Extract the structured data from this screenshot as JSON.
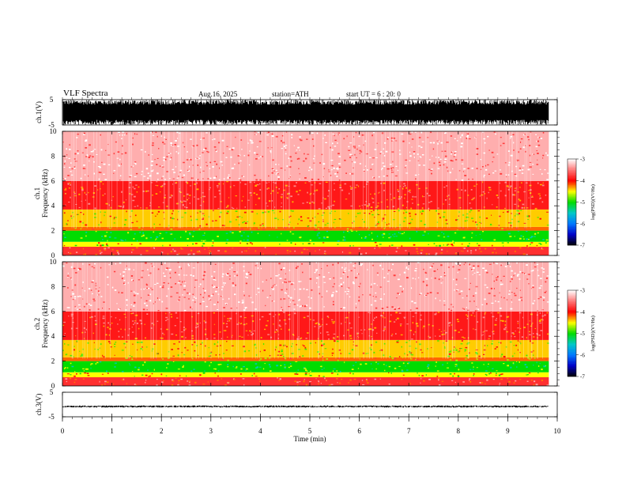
{
  "header": {
    "title": "VLF  Spectra",
    "date": "Aug.16, 2025",
    "station": "station=ATH",
    "start": "start  UT  =    6  : 20: 0"
  },
  "chart_data": [
    {
      "type": "line",
      "name": "ch1-waveform",
      "ylabel": "ch.1(V)",
      "ylim": [
        -5,
        5
      ],
      "yticks": [
        "5",
        "-5"
      ],
      "xlim": [
        0,
        10
      ],
      "data_end_min": 9.83,
      "amplitude_v": 5
    },
    {
      "type": "heatmap",
      "name": "ch1-spectrogram",
      "ylabel_line1": "ch.1",
      "ylabel_line2": "Frequency  (kHz)",
      "ylim": [
        0,
        10
      ],
      "yticks": [
        "0",
        "2",
        "4",
        "6",
        "8",
        "10"
      ],
      "xlim": [
        0,
        10
      ],
      "data_end_min": 9.83,
      "bands": [
        {
          "from_khz": 0.0,
          "to_khz": 0.7,
          "level": -3.8
        },
        {
          "from_khz": 0.7,
          "to_khz": 1.1,
          "level": -4.5
        },
        {
          "from_khz": 1.1,
          "to_khz": 2.0,
          "level": -5.0
        },
        {
          "from_khz": 2.0,
          "to_khz": 2.3,
          "level": -4.2
        },
        {
          "from_khz": 2.3,
          "to_khz": 3.7,
          "level": -4.4
        },
        {
          "from_khz": 3.7,
          "to_khz": 6.0,
          "level": -3.9
        },
        {
          "from_khz": 6.0,
          "to_khz": 10.0,
          "level": -3.3
        }
      ],
      "colorbar": {
        "label": "log(PSD)(V²/Hz)",
        "min": -7,
        "max": -3,
        "ticks": [
          "-3",
          "-4",
          "-5",
          "-6",
          "-7"
        ]
      }
    },
    {
      "type": "heatmap",
      "name": "ch2-spectrogram",
      "ylabel_line1": "ch.2",
      "ylabel_line2": "Frequency  (kHz)",
      "ylim": [
        0,
        10
      ],
      "yticks": [
        "0",
        "2",
        "4",
        "6",
        "8",
        "10"
      ],
      "xlim": [
        0,
        10
      ],
      "data_end_min": 9.83,
      "bands": [
        {
          "from_khz": 0.0,
          "to_khz": 0.7,
          "level": -3.8
        },
        {
          "from_khz": 0.7,
          "to_khz": 1.1,
          "level": -4.5
        },
        {
          "from_khz": 1.1,
          "to_khz": 2.0,
          "level": -5.0
        },
        {
          "from_khz": 2.0,
          "to_khz": 2.3,
          "level": -4.2
        },
        {
          "from_khz": 2.3,
          "to_khz": 3.7,
          "level": -4.4
        },
        {
          "from_khz": 3.7,
          "to_khz": 6.0,
          "level": -3.9
        },
        {
          "from_khz": 6.0,
          "to_khz": 10.0,
          "level": -3.3
        }
      ],
      "colorbar": {
        "label": "log(PSD)(V²/Hz)",
        "min": -7,
        "max": -3,
        "ticks": [
          "-3",
          "-4",
          "-5",
          "-6",
          "-7"
        ]
      }
    },
    {
      "type": "line",
      "name": "ch3-waveform",
      "ylabel": "ch.3(V)",
      "ylim": [
        -5,
        5
      ],
      "yticks": [
        "5",
        "-5"
      ],
      "xlim": [
        0,
        10
      ],
      "data_end_min": 9.83,
      "level_v": -0.8,
      "noise_v": 0.4,
      "xlabel": "Time  (min)",
      "xticks": [
        "0",
        "1",
        "2",
        "3",
        "4",
        "5",
        "6",
        "7",
        "8",
        "9",
        "10"
      ]
    }
  ]
}
